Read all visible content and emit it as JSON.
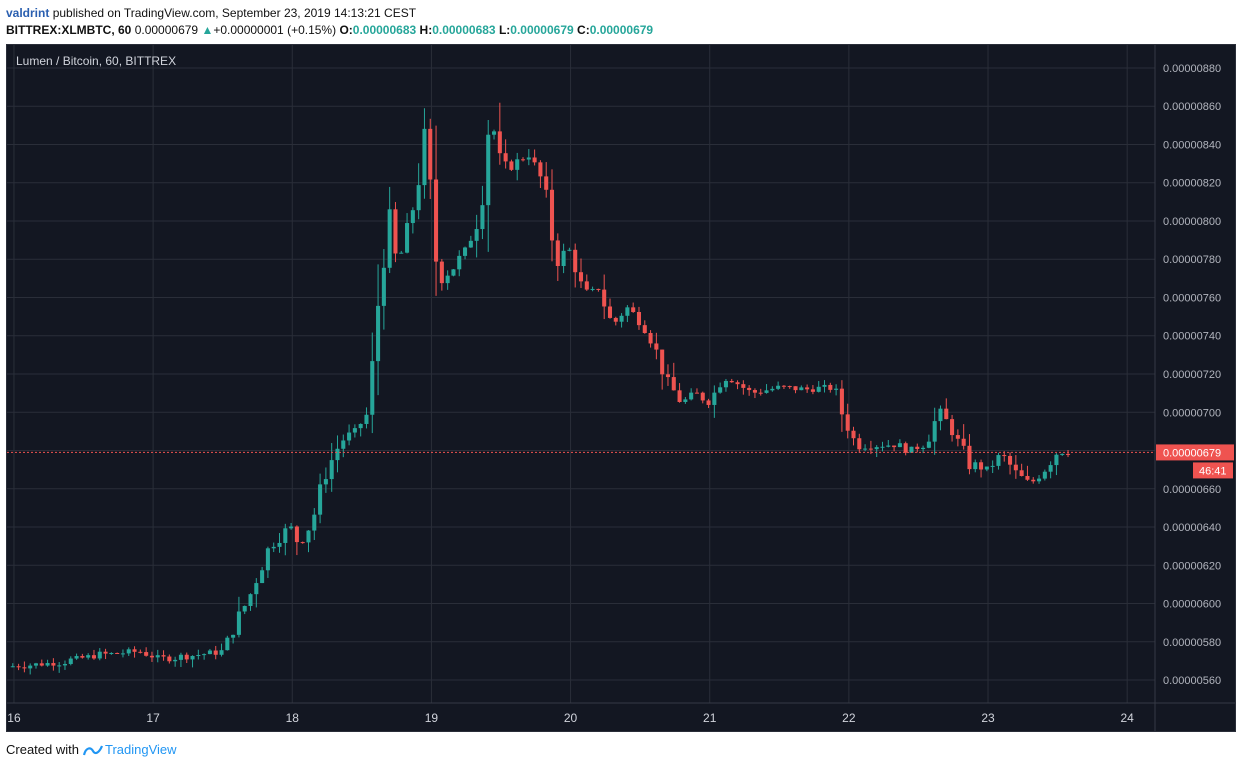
{
  "header": {
    "publisher": "valdrint",
    "published_text": "published on TradingView.com, September 23, 2019 14:13:21 CEST",
    "symbol_text": "BITTREX:XLMBTC, 60",
    "last_price": "0.00000679",
    "change_arrow": "▲",
    "change": "+0.00000001 (+0.15%)",
    "o_label": "O:",
    "o_value": "0.00000683",
    "h_label": "H:",
    "h_value": "0.00000683",
    "l_label": "L:",
    "l_value": "0.00000679",
    "c_label": "C:",
    "c_value": "0.00000679"
  },
  "footer": {
    "created_with": "Created with",
    "brand": "TradingView"
  },
  "colors": {
    "up": "#26a69a",
    "down": "#ef5350",
    "background": "#131722",
    "grid": "#2a2e39",
    "text": "#b2b5be",
    "price_badge": "#ef5350"
  },
  "chart_data": {
    "type": "candlestick",
    "title": "Lumen / Bitcoin, 60, BITTREX",
    "x_ticks": [
      "16",
      "17",
      "18",
      "19",
      "20",
      "21",
      "22",
      "23",
      "24"
    ],
    "y_ticks": [
      "0.00000880",
      "0.00000860",
      "0.00000840",
      "0.00000820",
      "0.00000800",
      "0.00000780",
      "0.00000760",
      "0.00000740",
      "0.00000720",
      "0.00000700",
      "0.00000680",
      "0.00000660",
      "0.00000640",
      "0.00000620",
      "0.00000600",
      "0.00000580",
      "0.00000560"
    ],
    "ylim": [
      5.48e-06,
      8.92e-06
    ],
    "xlim": [
      15.95,
      24.2
    ],
    "current_price": "0.00000679",
    "countdown": "46:41",
    "close_path": [
      [
        15.95,
        567
      ],
      [
        16.3,
        569
      ],
      [
        16.6,
        573
      ],
      [
        16.9,
        575
      ],
      [
        17.05,
        571
      ],
      [
        17.3,
        573
      ],
      [
        17.5,
        575
      ],
      [
        17.6,
        590
      ],
      [
        17.7,
        605
      ],
      [
        17.8,
        625
      ],
      [
        17.9,
        635
      ],
      [
        18.0,
        640
      ],
      [
        18.05,
        630
      ],
      [
        18.15,
        645
      ],
      [
        18.25,
        670
      ],
      [
        18.35,
        685
      ],
      [
        18.45,
        690
      ],
      [
        18.55,
        700
      ],
      [
        18.62,
        760
      ],
      [
        18.68,
        805
      ],
      [
        18.75,
        775
      ],
      [
        18.85,
        800
      ],
      [
        18.95,
        840
      ],
      [
        19.05,
        770
      ],
      [
        19.15,
        775
      ],
      [
        19.25,
        785
      ],
      [
        19.35,
        805
      ],
      [
        19.42,
        860
      ],
      [
        19.5,
        825
      ],
      [
        19.6,
        830
      ],
      [
        19.7,
        835
      ],
      [
        19.8,
        820
      ],
      [
        19.9,
        780
      ],
      [
        20.0,
        785
      ],
      [
        20.1,
        760
      ],
      [
        20.2,
        765
      ],
      [
        20.3,
        745
      ],
      [
        20.4,
        755
      ],
      [
        20.5,
        748
      ],
      [
        20.6,
        735
      ],
      [
        20.7,
        715
      ],
      [
        20.8,
        705
      ],
      [
        20.9,
        710
      ],
      [
        21.0,
        705
      ],
      [
        21.1,
        720
      ],
      [
        21.2,
        715
      ],
      [
        21.3,
        710
      ],
      [
        21.5,
        713
      ],
      [
        21.7,
        712
      ],
      [
        21.9,
        713
      ],
      [
        21.95,
        700
      ],
      [
        22.05,
        683
      ],
      [
        22.2,
        683
      ],
      [
        22.35,
        683
      ],
      [
        22.45,
        680
      ],
      [
        22.55,
        684
      ],
      [
        22.65,
        700
      ],
      [
        22.75,
        690
      ],
      [
        22.85,
        674
      ],
      [
        23.0,
        670
      ],
      [
        23.1,
        678
      ],
      [
        23.2,
        668
      ],
      [
        23.3,
        662
      ],
      [
        23.4,
        670
      ],
      [
        23.5,
        680
      ],
      [
        23.6,
        679
      ]
    ]
  }
}
